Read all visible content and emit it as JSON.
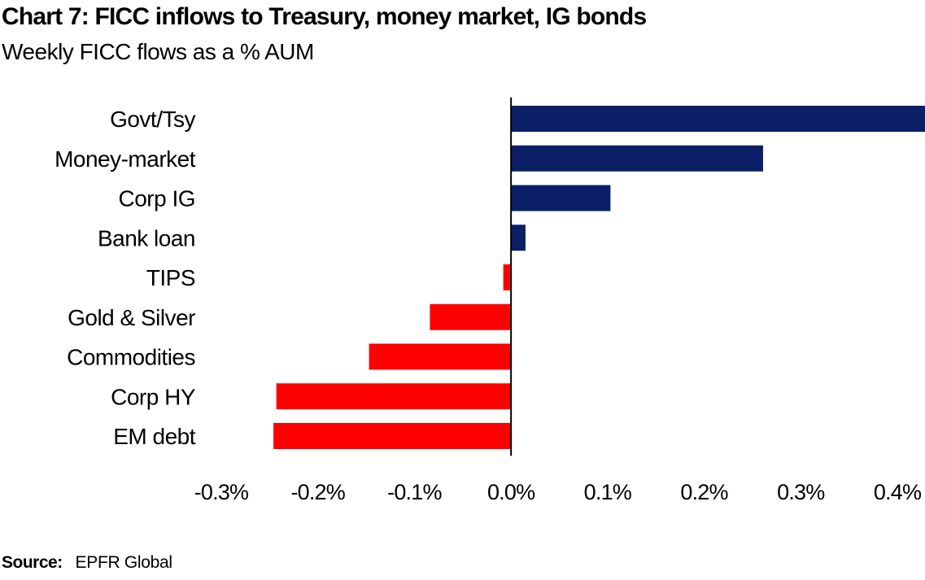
{
  "header": {
    "title": "Chart 7: FICC inflows to Treasury, money market, IG bonds",
    "subtitle": "Weekly FICC flows as a % AUM"
  },
  "source": {
    "label": "Source:",
    "value": "EPFR Global"
  },
  "colors": {
    "positive": "#0b1f66",
    "negative": "#ff0000",
    "axis": "#000000"
  },
  "chart_data": {
    "type": "bar",
    "orientation": "horizontal",
    "title": "Chart 7: FICC inflows to Treasury, money market, IG bonds",
    "subtitle": "Weekly FICC flows as a % AUM",
    "categories": [
      "Govt/Tsy",
      "Money-market",
      "Corp IG",
      "Bank loan",
      "TIPS",
      "Gold & Silver",
      "Commodities",
      "Corp HY",
      "EM debt"
    ],
    "values": [
      0.432,
      0.261,
      0.103,
      0.015,
      -0.008,
      -0.084,
      -0.147,
      -0.243,
      -0.246
    ],
    "xlim": [
      -0.3,
      0.4
    ],
    "xticks": [
      -0.3,
      -0.2,
      -0.1,
      0.0,
      0.1,
      0.2,
      0.3,
      0.4
    ],
    "xtick_labels": [
      "-0.3%",
      "-0.2%",
      "-0.1%",
      "0.0%",
      "0.1%",
      "0.2%",
      "0.3%",
      "0.4%"
    ],
    "grid": false,
    "legend": "none"
  }
}
